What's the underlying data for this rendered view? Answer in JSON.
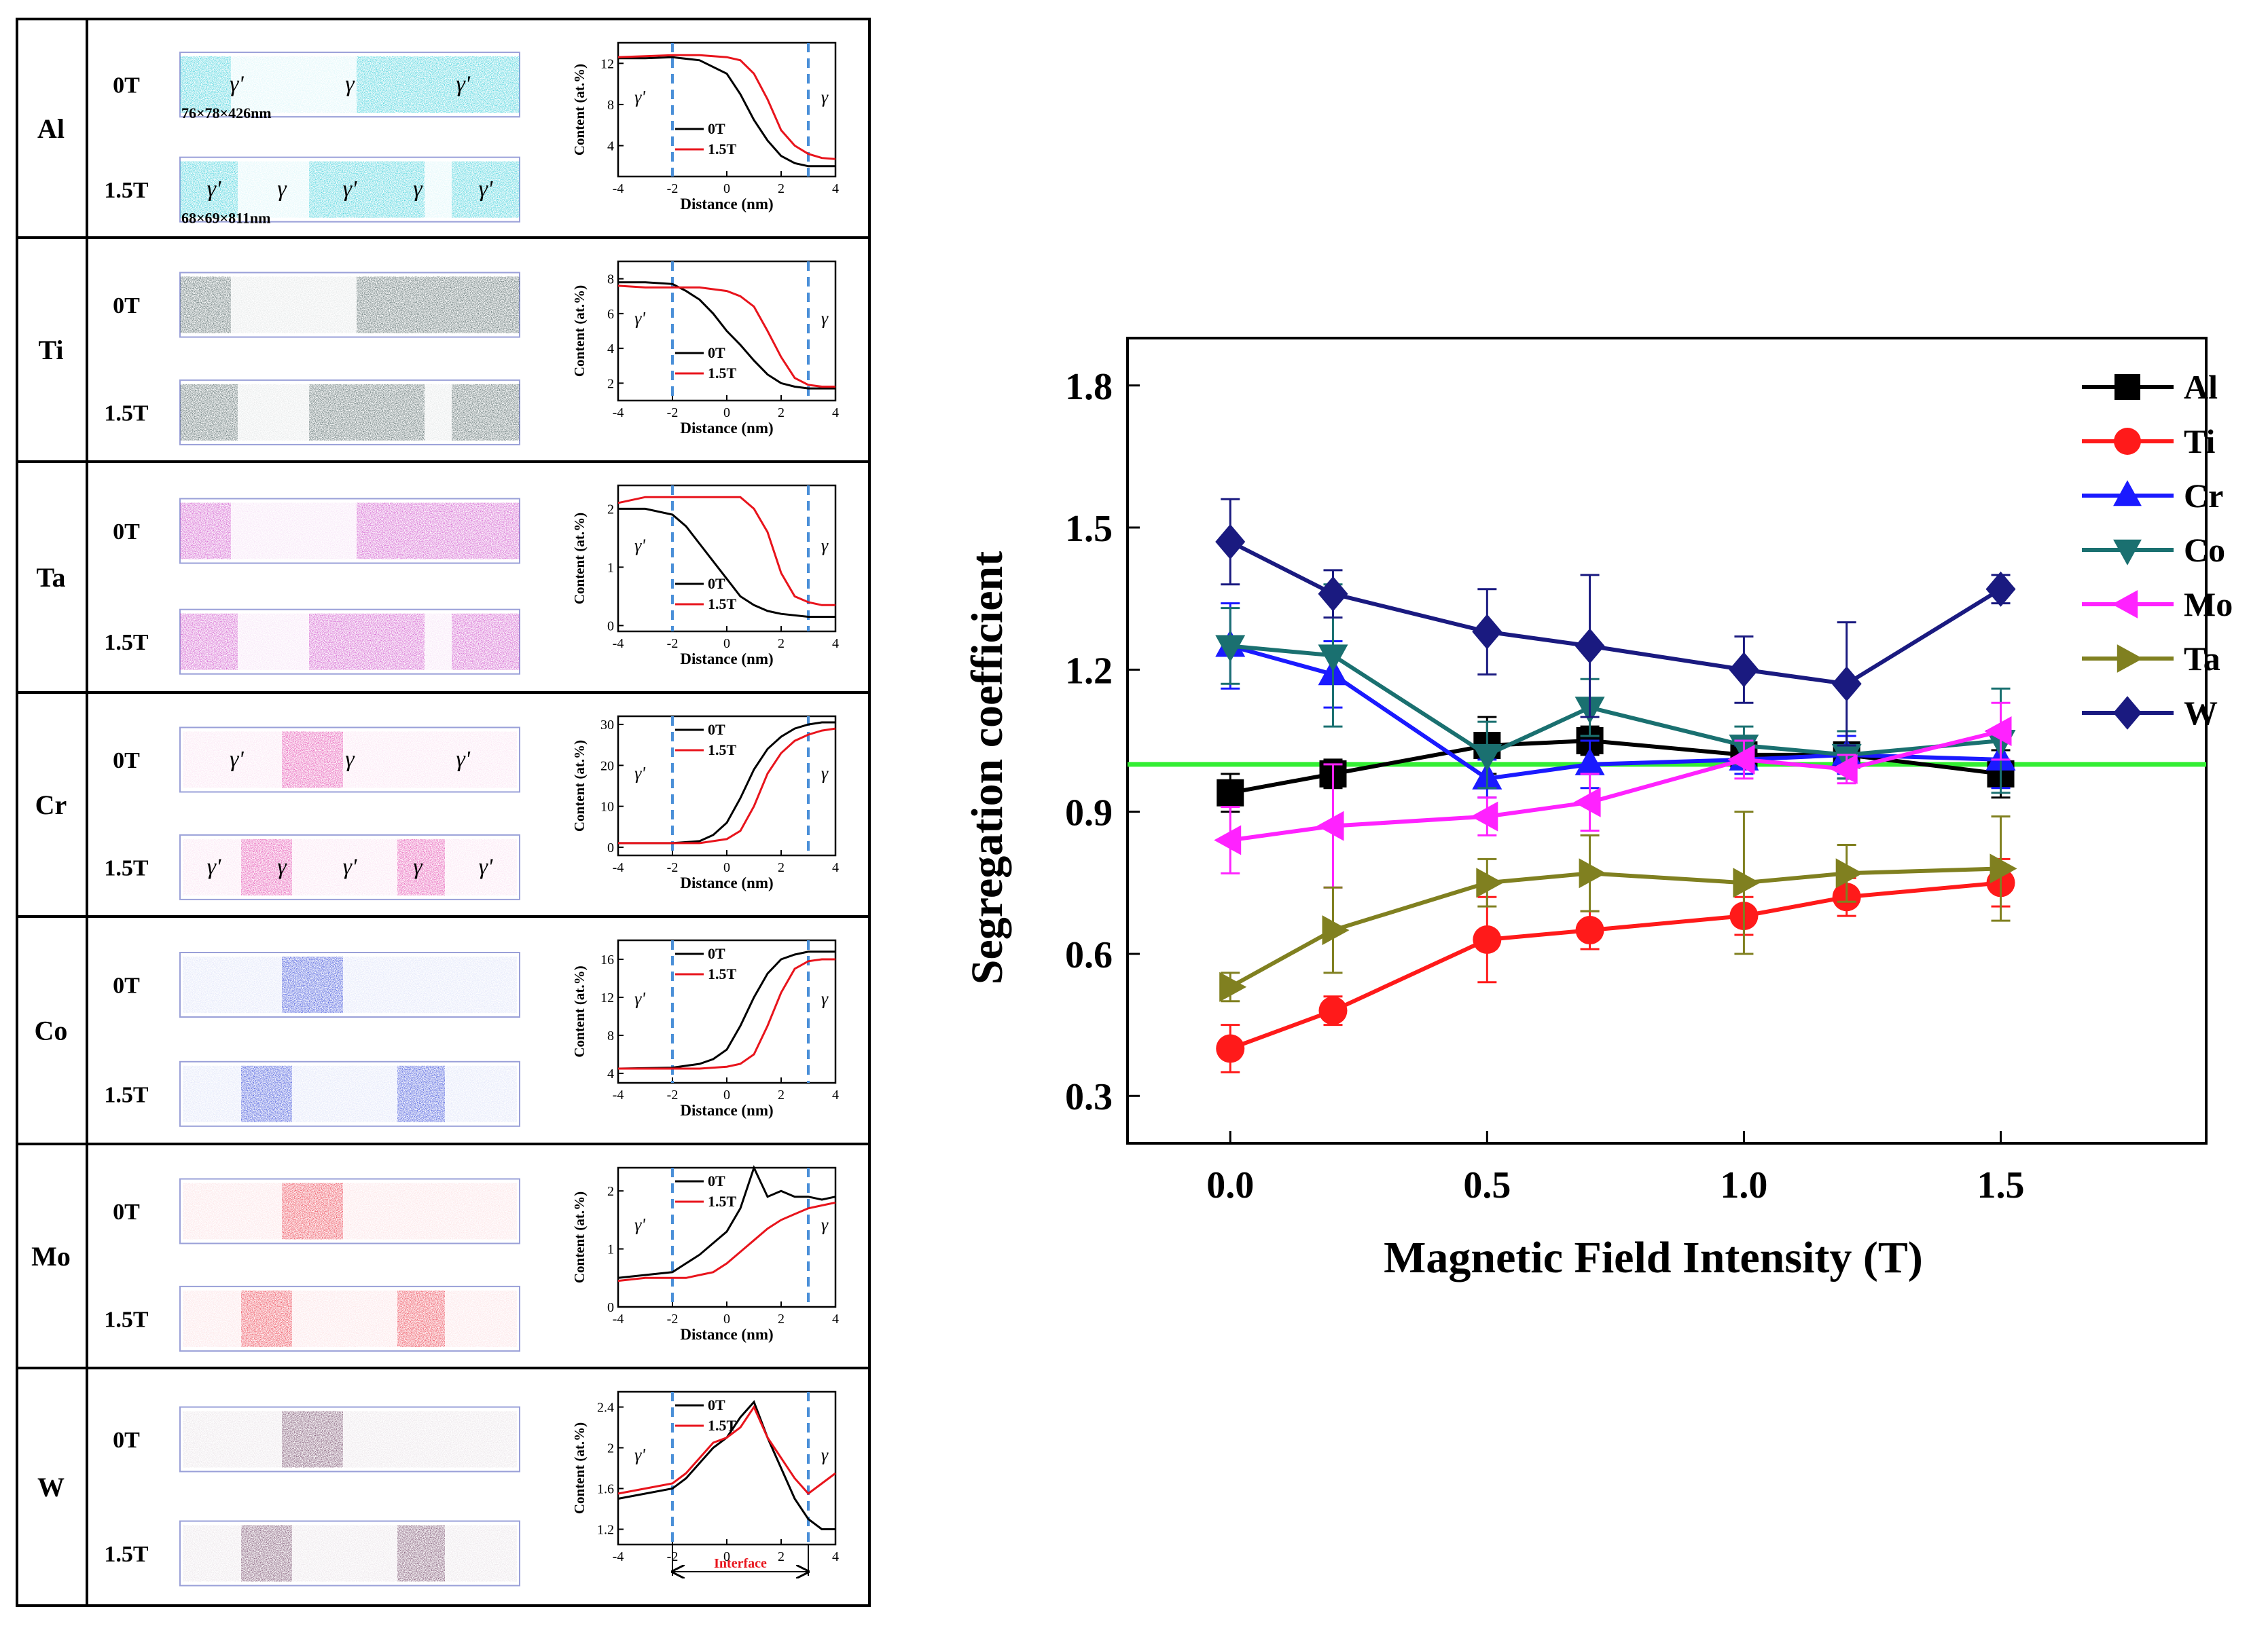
{
  "left_panel": {
    "rows": [
      {
        "element": "Al",
        "top_label": "0T",
        "bottom_label": "1.5T",
        "color": "#26c9d6",
        "top_phases": [
          "γ'",
          "γ",
          "γ'"
        ],
        "bottom_phases": [
          "γ'",
          "γ",
          "γ'",
          "γ",
          "γ'"
        ],
        "top_dims": "76×78×426nm",
        "bottom_dims": "68×69×811nm"
      },
      {
        "element": "Ti",
        "top_label": "0T",
        "bottom_label": "1.5T",
        "color": "#3f5656",
        "top_phases": [],
        "bottom_phases": [],
        "top_dims": "",
        "bottom_dims": ""
      },
      {
        "element": "Ta",
        "top_label": "0T",
        "bottom_label": "1.5T",
        "color": "#c93cc4",
        "top_phases": [],
        "bottom_phases": [],
        "top_dims": "",
        "bottom_dims": ""
      },
      {
        "element": "Cr",
        "top_label": "0T",
        "bottom_label": "1.5T",
        "color": "#e23da8",
        "top_phases": [
          "γ'",
          "γ",
          "γ'"
        ],
        "bottom_phases": [
          "γ'",
          "γ",
          "γ'",
          "γ",
          "γ'"
        ],
        "top_dims": "",
        "bottom_dims": ""
      },
      {
        "element": "Co",
        "top_label": "0T",
        "bottom_label": "1.5T",
        "color": "#2a3fd6",
        "top_phases": [],
        "bottom_phases": [],
        "top_dims": "",
        "bottom_dims": ""
      },
      {
        "element": "Mo",
        "top_label": "0T",
        "bottom_label": "1.5T",
        "color": "#ea3040",
        "top_phases": [],
        "bottom_phases": [],
        "top_dims": "",
        "bottom_dims": ""
      },
      {
        "element": "W",
        "top_label": "0T",
        "bottom_label": "1.5T",
        "color": "#6a3d5e",
        "top_phases": [],
        "bottom_phases": [],
        "top_dims": "",
        "bottom_dims": ""
      }
    ]
  },
  "chart_data": [
    {
      "type": "line",
      "panel": "Al profile",
      "title": "",
      "xlabel": "Distance (nm)",
      "ylabel": "Content (at.%)",
      "xlim": [
        -4,
        4
      ],
      "ylim": [
        1,
        14
      ],
      "xticks": [
        -4,
        -2,
        0,
        2,
        4
      ],
      "yticks": [
        4,
        8,
        12
      ],
      "legend": [
        "0T",
        "1.5T"
      ],
      "legend_position": "left-bottom",
      "phase_left": "γ'",
      "phase_right": "γ",
      "interface": [
        -2,
        3
      ],
      "series": [
        {
          "name": "0T",
          "color": "#000000",
          "x": [
            -4,
            -3,
            -2,
            -1,
            0,
            0.5,
            1,
            1.5,
            2,
            2.5,
            3,
            3.5,
            4
          ],
          "y": [
            12.5,
            12.5,
            12.6,
            12.3,
            11,
            9,
            6.5,
            4.5,
            3,
            2.3,
            2,
            2,
            2
          ]
        },
        {
          "name": "1.5T",
          "color": "#e8141c",
          "x": [
            -4,
            -3,
            -2,
            -1,
            0,
            0.5,
            1,
            1.5,
            2,
            2.5,
            3,
            3.5,
            4
          ],
          "y": [
            12.6,
            12.7,
            12.8,
            12.8,
            12.6,
            12.3,
            11,
            8.5,
            5.5,
            4,
            3.2,
            2.8,
            2.7
          ]
        }
      ]
    },
    {
      "type": "line",
      "panel": "Ti profile",
      "title": "",
      "xlabel": "Distance (nm)",
      "ylabel": "Content (at.%)",
      "xlim": [
        -4,
        4
      ],
      "ylim": [
        1,
        9
      ],
      "xticks": [
        -4,
        -2,
        0,
        2,
        4
      ],
      "yticks": [
        2,
        4,
        6,
        8
      ],
      "legend": [
        "0T",
        "1.5T"
      ],
      "legend_position": "left-bottom",
      "phase_left": "γ'",
      "phase_right": "γ",
      "interface": [
        -2,
        3
      ],
      "series": [
        {
          "name": "0T",
          "color": "#000000",
          "x": [
            -4,
            -3,
            -2,
            -1.5,
            -1,
            -0.5,
            0,
            0.5,
            1,
            1.5,
            2,
            2.5,
            3,
            3.5,
            4
          ],
          "y": [
            7.8,
            7.8,
            7.7,
            7.3,
            6.8,
            6,
            5,
            4.2,
            3.3,
            2.5,
            2,
            1.8,
            1.7,
            1.7,
            1.7
          ]
        },
        {
          "name": "1.5T",
          "color": "#e8141c",
          "x": [
            -4,
            -3,
            -2,
            -1,
            0,
            0.5,
            1,
            1.5,
            2,
            2.5,
            3,
            3.5,
            4
          ],
          "y": [
            7.6,
            7.5,
            7.5,
            7.5,
            7.3,
            7,
            6.4,
            5,
            3.5,
            2.3,
            1.9,
            1.8,
            1.8
          ]
        }
      ]
    },
    {
      "type": "line",
      "panel": "Ta profile",
      "title": "",
      "xlabel": "Distance (nm)",
      "ylabel": "Content (at.%)",
      "xlim": [
        -4,
        4
      ],
      "ylim": [
        -0.1,
        2.4
      ],
      "xticks": [
        -4,
        -2,
        0,
        2,
        4
      ],
      "yticks": [
        0,
        1,
        2
      ],
      "legend": [
        "0T",
        "1.5T"
      ],
      "legend_position": "left-bottom",
      "phase_left": "γ'",
      "phase_right": "γ",
      "interface": [
        -2,
        3
      ],
      "series": [
        {
          "name": "0T",
          "color": "#000000",
          "x": [
            -4,
            -3,
            -2,
            -1.5,
            -1,
            -0.5,
            0,
            0.5,
            1,
            1.5,
            2,
            3,
            4
          ],
          "y": [
            2,
            2,
            1.9,
            1.7,
            1.4,
            1.1,
            0.8,
            0.5,
            0.35,
            0.25,
            0.2,
            0.15,
            0.15
          ]
        },
        {
          "name": "1.5T",
          "color": "#e8141c",
          "x": [
            -4,
            -3,
            -2,
            -1,
            0,
            0.5,
            1,
            1.5,
            2,
            2.5,
            3,
            3.5,
            4
          ],
          "y": [
            2.1,
            2.2,
            2.2,
            2.2,
            2.2,
            2.2,
            2,
            1.6,
            0.9,
            0.5,
            0.4,
            0.35,
            0.35
          ]
        }
      ]
    },
    {
      "type": "line",
      "panel": "Cr profile",
      "title": "",
      "xlabel": "Distance (nm)",
      "ylabel": "Content (at.%)",
      "xlim": [
        -4,
        4
      ],
      "ylim": [
        -2,
        32
      ],
      "xticks": [
        -4,
        -2,
        0,
        2,
        4
      ],
      "yticks": [
        0,
        10,
        20,
        30
      ],
      "legend": [
        "0T",
        "1.5T"
      ],
      "legend_position": "top-left",
      "phase_left": "γ'",
      "phase_right": "γ",
      "interface": [
        -2,
        3
      ],
      "series": [
        {
          "name": "0T",
          "color": "#000000",
          "x": [
            -4,
            -2,
            -1,
            -0.5,
            0,
            0.5,
            1,
            1.5,
            2,
            2.5,
            3,
            3.5,
            4
          ],
          "y": [
            1,
            1,
            1.5,
            3,
            6,
            12,
            19,
            24,
            27,
            29,
            30,
            30.5,
            30.5
          ]
        },
        {
          "name": "1.5T",
          "color": "#e8141c",
          "x": [
            -4,
            -2,
            -1,
            0,
            0.5,
            1,
            1.5,
            2,
            2.5,
            3,
            3.5,
            4
          ],
          "y": [
            1,
            1,
            1,
            2,
            4,
            10,
            18,
            23,
            26,
            27.5,
            28.5,
            29
          ]
        }
      ]
    },
    {
      "type": "line",
      "panel": "Co profile",
      "title": "",
      "xlabel": "Distance (nm)",
      "ylabel": "Content (at.%)",
      "xlim": [
        -4,
        4
      ],
      "ylim": [
        3,
        18
      ],
      "xticks": [
        -4,
        -2,
        0,
        2,
        4
      ],
      "yticks": [
        4,
        8,
        12,
        16
      ],
      "legend": [
        "0T",
        "1.5T"
      ],
      "legend_position": "top-left",
      "phase_left": "γ'",
      "phase_right": "γ",
      "interface": [
        -2,
        3
      ],
      "series": [
        {
          "name": "0T",
          "color": "#000000",
          "x": [
            -4,
            -2,
            -1,
            -0.5,
            0,
            0.5,
            1,
            1.5,
            2,
            2.5,
            3,
            4
          ],
          "y": [
            4.5,
            4.6,
            5,
            5.5,
            6.5,
            9,
            12,
            14.5,
            16,
            16.5,
            16.8,
            16.8
          ]
        },
        {
          "name": "1.5T",
          "color": "#e8141c",
          "x": [
            -4,
            -2,
            -1,
            0,
            0.5,
            1,
            1.5,
            2,
            2.5,
            3,
            3.5,
            4
          ],
          "y": [
            4.5,
            4.5,
            4.5,
            4.7,
            5,
            6,
            9,
            12.5,
            15,
            15.8,
            16,
            16
          ]
        }
      ]
    },
    {
      "type": "line",
      "panel": "Mo profile",
      "title": "",
      "xlabel": "Distance (nm)",
      "ylabel": "Content (at.%)",
      "xlim": [
        -4,
        4
      ],
      "ylim": [
        0,
        2.4
      ],
      "xticks": [
        -4,
        -2,
        0,
        2,
        4
      ],
      "yticks": [
        0,
        1,
        2
      ],
      "legend": [
        "0T",
        "1.5T"
      ],
      "legend_position": "top-left",
      "phase_left": "γ'",
      "phase_right": "γ",
      "interface": [
        -2,
        3
      ],
      "series": [
        {
          "name": "0T",
          "color": "#000000",
          "x": [
            -4,
            -3,
            -2,
            -1.5,
            -1,
            -0.5,
            0,
            0.5,
            1,
            1.5,
            2,
            2.5,
            3,
            3.5,
            4
          ],
          "y": [
            0.5,
            0.55,
            0.6,
            0.75,
            0.9,
            1.1,
            1.3,
            1.7,
            2.4,
            1.9,
            2,
            1.9,
            1.9,
            1.85,
            1.9
          ]
        },
        {
          "name": "1.5T",
          "color": "#e8141c",
          "x": [
            -4,
            -3,
            -2,
            -1.5,
            -1,
            -0.5,
            0,
            0.5,
            1,
            1.5,
            2,
            2.5,
            3,
            3.5,
            4
          ],
          "y": [
            0.45,
            0.5,
            0.5,
            0.5,
            0.55,
            0.6,
            0.75,
            0.95,
            1.15,
            1.35,
            1.5,
            1.6,
            1.7,
            1.75,
            1.8
          ]
        }
      ]
    },
    {
      "type": "line",
      "panel": "W profile",
      "title": "",
      "xlabel": "",
      "ylabel": "Content (at.%)",
      "xlim": [
        -4,
        4
      ],
      "ylim": [
        1.05,
        2.55
      ],
      "xticks": [
        -4,
        -2,
        0,
        2,
        4
      ],
      "yticks": [
        1.2,
        1.6,
        2.0,
        2.4
      ],
      "yticklabels": [
        "1.2",
        "1.6",
        "2.0",
        "2.4"
      ],
      "legend": [
        "0T",
        "1.5T"
      ],
      "legend_position": "top-left",
      "phase_left": "γ'",
      "phase_right": "γ",
      "interface": [
        -2,
        3
      ],
      "interface_label": "Interface",
      "series": [
        {
          "name": "0T",
          "color": "#000000",
          "x": [
            -4,
            -3,
            -2,
            -1.5,
            -1,
            -0.5,
            0,
            0.5,
            1,
            1.5,
            2,
            2.5,
            3,
            3.5,
            4
          ],
          "y": [
            1.5,
            1.55,
            1.6,
            1.7,
            1.85,
            2,
            2.1,
            2.3,
            2.45,
            2.1,
            1.8,
            1.5,
            1.3,
            1.2,
            1.2
          ]
        },
        {
          "name": "1.5T",
          "color": "#e8141c",
          "x": [
            -4,
            -3,
            -2,
            -1.5,
            -1,
            -0.5,
            0,
            0.5,
            1,
            1.5,
            2,
            2.5,
            3,
            3.5,
            4
          ],
          "y": [
            1.55,
            1.6,
            1.65,
            1.75,
            1.9,
            2.05,
            2.1,
            2.2,
            2.4,
            2.1,
            1.9,
            1.7,
            1.55,
            1.65,
            1.75
          ]
        }
      ]
    },
    {
      "type": "line",
      "panel": "Segregation coefficient vs field",
      "title": "",
      "xlabel": "Magnetic Field Intensity (T)",
      "ylabel": "Segregation coefficient",
      "xlim": [
        -0.2,
        1.9
      ],
      "ylim": [
        0.2,
        1.9
      ],
      "xticks": [
        0.0,
        0.5,
        1.0,
        1.5
      ],
      "xticklabels": [
        "0.0",
        "0.5",
        "1.0",
        "1.5"
      ],
      "yticks": [
        0.3,
        0.6,
        0.9,
        1.2,
        1.5,
        1.8
      ],
      "yticklabels": [
        "0.3",
        "0.6",
        "0.9",
        "1.2",
        "1.5",
        "1.8"
      ],
      "reference_line": {
        "y": 1.0,
        "color": "#33ee33"
      },
      "legend_position": "top-right",
      "x": [
        0.0,
        0.2,
        0.5,
        0.7,
        1.0,
        1.2,
        1.5
      ],
      "series": [
        {
          "name": "Al",
          "color": "#000000",
          "marker": "square",
          "values": [
            0.94,
            0.98,
            1.04,
            1.05,
            1.02,
            1.02,
            0.98
          ],
          "errors": [
            0.04,
            0.03,
            0.06,
            0.03,
            0.03,
            0.05,
            0.05
          ]
        },
        {
          "name": "Ti",
          "color": "#ff1a1a",
          "marker": "circle",
          "values": [
            0.4,
            0.48,
            0.63,
            0.65,
            0.68,
            0.72,
            0.75
          ],
          "errors": [
            0.05,
            0.03,
            0.09,
            0.04,
            0.04,
            0.04,
            0.05
          ]
        },
        {
          "name": "Cr",
          "color": "#1a1aff",
          "marker": "triangle-up",
          "values": [
            1.25,
            1.19,
            0.97,
            1.0,
            1.01,
            1.02,
            1.01
          ],
          "errors": [
            0.09,
            0.07,
            0.04,
            0.05,
            0.03,
            0.04,
            0.06
          ]
        },
        {
          "name": "Co",
          "color": "#1a7070",
          "marker": "triangle-down",
          "values": [
            1.25,
            1.23,
            1.02,
            1.12,
            1.04,
            1.02,
            1.05
          ],
          "errors": [
            0.08,
            0.15,
            0.07,
            0.06,
            0.04,
            0.05,
            0.11
          ]
        },
        {
          "name": "Mo",
          "color": "#ff22ff",
          "marker": "triangle-left",
          "values": [
            0.84,
            0.87,
            0.89,
            0.92,
            1.01,
            0.99,
            1.07
          ],
          "errors": [
            0.07,
            0.13,
            0.04,
            0.06,
            0.04,
            0.03,
            0.06
          ]
        },
        {
          "name": "Ta",
          "color": "#808020",
          "marker": "triangle-right",
          "values": [
            0.53,
            0.65,
            0.75,
            0.77,
            0.75,
            0.77,
            0.78
          ],
          "errors": [
            0.03,
            0.09,
            0.05,
            0.08,
            0.15,
            0.06,
            0.11
          ]
        },
        {
          "name": "W",
          "color": "#1a1a80",
          "marker": "diamond",
          "values": [
            1.47,
            1.36,
            1.28,
            1.25,
            1.2,
            1.17,
            1.37
          ],
          "errors": [
            0.09,
            0.05,
            0.09,
            0.15,
            0.07,
            0.13,
            0.03
          ]
        }
      ]
    }
  ]
}
